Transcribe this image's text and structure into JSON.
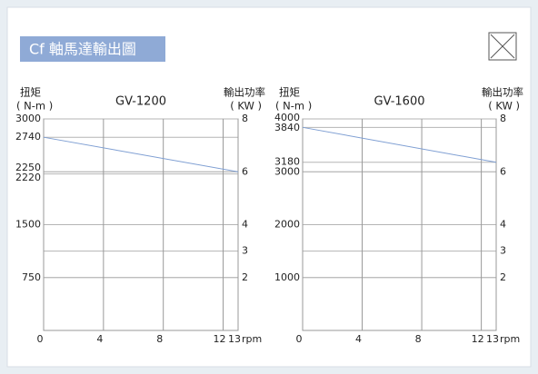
{
  "header": {
    "title": "Cf 軸馬達輸出圖"
  },
  "chart_data": [
    {
      "type": "line",
      "title": "GV-1200",
      "y_label": "扭矩",
      "y_unit": "( N-m )",
      "y2_label": "輸出功率",
      "y2_unit": "( KW )",
      "x_unit": "rpm",
      "x": [
        0,
        13
      ],
      "series": [
        {
          "color": "#7f9fd3",
          "values": [
            2740,
            2250
          ]
        }
      ],
      "xlim": [
        0,
        13
      ],
      "xticks": [
        0,
        4,
        8,
        12,
        13
      ],
      "ylim": [
        0,
        3000
      ],
      "yticks": [
        3000,
        2740,
        2250,
        2220,
        1500,
        750
      ],
      "y2lim": [
        0,
        8
      ],
      "y2ticks": [
        8,
        6,
        4,
        3,
        2
      ],
      "grid": true
    },
    {
      "type": "line",
      "title": "GV-1600",
      "y_label": "扭矩",
      "y_unit": "( N-m )",
      "y2_label": "輸出功率",
      "y2_unit": "( KW )",
      "x_unit": "rpm",
      "x": [
        0,
        13
      ],
      "series": [
        {
          "color": "#7f9fd3",
          "values": [
            3840,
            3180
          ]
        }
      ],
      "xlim": [
        0,
        13
      ],
      "xticks": [
        0,
        4,
        8,
        12,
        13
      ],
      "ylim": [
        0,
        4000
      ],
      "yticks": [
        4000,
        3840,
        3180,
        3000,
        2000,
        1000
      ],
      "y2lim": [
        0,
        8
      ],
      "y2ticks": [
        8,
        6,
        4,
        3,
        2
      ],
      "grid": true
    }
  ]
}
